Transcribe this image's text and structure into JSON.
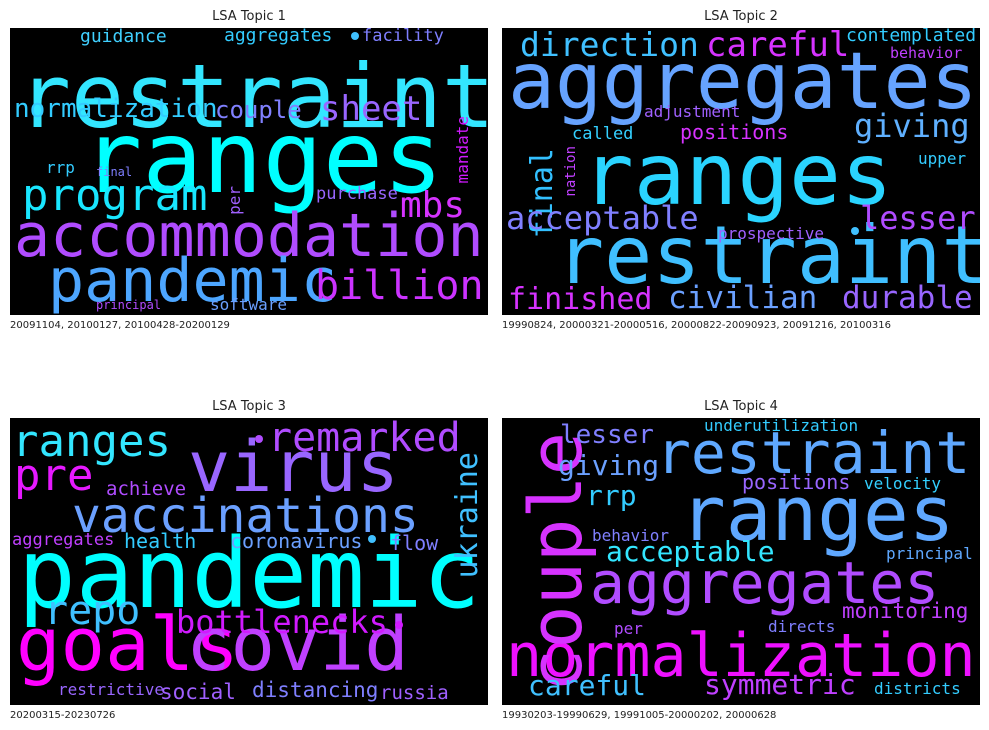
{
  "chart_data": [
    {
      "type": "wordcloud",
      "title": "LSA Topic 1",
      "caption": "20091104, 20100127, 20100428-20200129",
      "words": [
        {
          "text": "restraint",
          "color": "#33e6ff"
        },
        {
          "text": "ranges",
          "color": "#00ffff"
        },
        {
          "text": "accommodation",
          "color": "#b04cff"
        },
        {
          "text": "pandemic",
          "color": "#4da6ff"
        },
        {
          "text": "program",
          "color": "#19e6ff"
        },
        {
          "text": "billion",
          "color": "#cc33ff"
        },
        {
          "text": "normalization",
          "color": "#33ccff"
        },
        {
          "text": "sheet",
          "color": "#9966ff"
        },
        {
          "text": "mbs",
          "color": "#d633ff"
        },
        {
          "text": "couple",
          "color": "#8080ff"
        },
        {
          "text": "guidance",
          "color": "#40d0ff"
        },
        {
          "text": "aggregates",
          "color": "#33ccff"
        },
        {
          "text": "facility",
          "color": "#7f7fff"
        },
        {
          "text": "mandate",
          "color": "#d11aff"
        },
        {
          "text": "purchase",
          "color": "#9966ff"
        },
        {
          "text": "per",
          "color": "#a060ff"
        },
        {
          "text": "rrp",
          "color": "#33ccff"
        },
        {
          "text": "final",
          "color": "#7f7fff"
        },
        {
          "text": "software",
          "color": "#6ba0ff"
        },
        {
          "text": "principal",
          "color": "#b04cff"
        }
      ]
    },
    {
      "type": "wordcloud",
      "title": "LSA Topic 2",
      "caption": "19990824, 20000321-20000516, 20000822-20090923, 20091216, 20100316",
      "words": [
        {
          "text": "aggregates",
          "color": "#66a3ff"
        },
        {
          "text": "ranges",
          "color": "#2ad4ff"
        },
        {
          "text": "restraint",
          "color": "#40bfff"
        },
        {
          "text": "direction",
          "color": "#40c0ff"
        },
        {
          "text": "careful",
          "color": "#d633ff"
        },
        {
          "text": "contemplated",
          "color": "#33ccff"
        },
        {
          "text": "behavior",
          "color": "#c040ff"
        },
        {
          "text": "giving",
          "color": "#5fb0ff"
        },
        {
          "text": "final",
          "color": "#33c0ff"
        },
        {
          "text": "nation",
          "color": "#c040ff"
        },
        {
          "text": "adjustment",
          "color": "#a060ff"
        },
        {
          "text": "called",
          "color": "#33d0ff"
        },
        {
          "text": "positions",
          "color": "#d633ff"
        },
        {
          "text": "upper",
          "color": "#33ccff"
        },
        {
          "text": "acceptable",
          "color": "#8080ff"
        },
        {
          "text": "lesser",
          "color": "#b04cff"
        },
        {
          "text": "prospective",
          "color": "#a060ff"
        },
        {
          "text": "finished",
          "color": "#d633ff"
        },
        {
          "text": "civilian",
          "color": "#6ba0ff"
        },
        {
          "text": "durable",
          "color": "#9966ff"
        }
      ]
    },
    {
      "type": "wordcloud",
      "title": "LSA Topic 3",
      "caption": "20200315-20230726",
      "words": [
        {
          "text": "pandemic",
          "color": "#00ffff"
        },
        {
          "text": "virus",
          "color": "#9966ff"
        },
        {
          "text": "goals",
          "color": "#ff00ff"
        },
        {
          "text": "covid",
          "color": "#c040ff"
        },
        {
          "text": "vaccinations",
          "color": "#6ba0ff"
        },
        {
          "text": "ranges",
          "color": "#33e6ff"
        },
        {
          "text": "remarked",
          "color": "#b04cff"
        },
        {
          "text": "pre",
          "color": "#e619ff"
        },
        {
          "text": "repo",
          "color": "#40c0ff"
        },
        {
          "text": "bottlenecks",
          "color": "#d11aff"
        },
        {
          "text": "ukraine",
          "color": "#40c0ff"
        },
        {
          "text": "achieve",
          "color": "#b04cff"
        },
        {
          "text": "aggregates",
          "color": "#c040ff"
        },
        {
          "text": "health",
          "color": "#33ccff"
        },
        {
          "text": "coronavirus",
          "color": "#6ba0ff"
        },
        {
          "text": "flow",
          "color": "#7f7fff"
        },
        {
          "text": "restrictive",
          "color": "#9966ff"
        },
        {
          "text": "social",
          "color": "#a060ff"
        },
        {
          "text": "distancing",
          "color": "#7f7fff"
        },
        {
          "text": "russia",
          "color": "#a060ff"
        }
      ]
    },
    {
      "type": "wordcloud",
      "title": "LSA Topic 4",
      "caption": "19930203-19990629, 19991005-20000202, 20000628",
      "words": [
        {
          "text": "ranges",
          "color": "#5fa8ff"
        },
        {
          "text": "normalization",
          "color": "#ee11ff"
        },
        {
          "text": "restraint",
          "color": "#5fa8ff"
        },
        {
          "text": "aggregates",
          "color": "#b04cff"
        },
        {
          "text": "couple",
          "color": "#d633ff"
        },
        {
          "text": "lesser",
          "color": "#7f7fff"
        },
        {
          "text": "underutilization",
          "color": "#33ccff"
        },
        {
          "text": "giving",
          "color": "#6ba0ff"
        },
        {
          "text": "rrp",
          "color": "#33ccff"
        },
        {
          "text": "positions",
          "color": "#9966ff"
        },
        {
          "text": "velocity",
          "color": "#33d0ff"
        },
        {
          "text": "acceptable",
          "color": "#33e6ff"
        },
        {
          "text": "behavior",
          "color": "#8080ff"
        },
        {
          "text": "principal",
          "color": "#5fa8ff"
        },
        {
          "text": "monitoring",
          "color": "#c040ff"
        },
        {
          "text": "per",
          "color": "#b04cff"
        },
        {
          "text": "directs",
          "color": "#7f7fff"
        },
        {
          "text": "careful",
          "color": "#40c0ff"
        },
        {
          "text": "symmetric",
          "color": "#c040ff"
        },
        {
          "text": "districts",
          "color": "#33ccff"
        }
      ]
    }
  ]
}
